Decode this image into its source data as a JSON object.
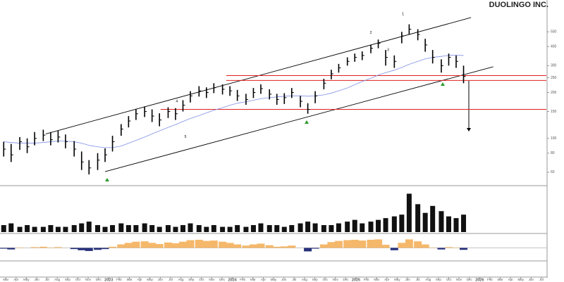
{
  "chart_data": [
    {
      "type": "ohlc",
      "title": "DUOLINGO INC.",
      "log_scale": true,
      "x": [
        2022.15,
        2022.21,
        2022.28,
        2022.34,
        2022.4,
        2022.47,
        2022.53,
        2022.59,
        2022.65,
        2022.72,
        2022.78,
        2022.84,
        2022.91,
        2022.97,
        2023.03,
        2023.1,
        2023.16,
        2023.22,
        2023.29,
        2023.35,
        2023.41,
        2023.48,
        2023.54,
        2023.6,
        2023.66,
        2023.73,
        2023.79,
        2023.85,
        2023.92,
        2023.98,
        2024.04,
        2024.11,
        2024.17,
        2024.23,
        2024.3,
        2024.36,
        2024.42,
        2024.48,
        2024.55,
        2024.61,
        2024.67,
        2024.74,
        2024.8,
        2024.86,
        2024.93,
        2024.99,
        2025.05,
        2025.12,
        2025.18,
        2025.24,
        2025.31,
        2025.37,
        2025.43,
        2025.5,
        2025.56,
        2025.62,
        2025.69,
        2025.75,
        2025.81,
        2025.87
      ],
      "high": [
        95,
        92,
        102,
        100,
        110,
        114,
        110,
        112,
        106,
        96,
        82,
        72,
        80,
        86,
        104,
        124,
        140,
        156,
        162,
        155,
        146,
        160,
        158,
        178,
        204,
        220,
        216,
        230,
        226,
        220,
        208,
        196,
        214,
        226,
        210,
        196,
        198,
        214,
        190,
        170,
        204,
        246,
        282,
        308,
        340,
        360,
        372,
        412,
        445,
        380,
        350,
        500,
        560,
        520,
        450,
        380,
        330,
        360,
        350,
        300
      ],
      "low": [
        76,
        70,
        84,
        80,
        90,
        96,
        90,
        94,
        86,
        76,
        62,
        58,
        62,
        70,
        82,
        104,
        118,
        132,
        138,
        128,
        120,
        136,
        132,
        150,
        172,
        188,
        184,
        198,
        194,
        190,
        176,
        166,
        184,
        196,
        180,
        166,
        168,
        184,
        160,
        145,
        170,
        210,
        244,
        270,
        300,
        318,
        326,
        362,
        390,
        300,
        290,
        420,
        480,
        440,
        370,
        310,
        270,
        300,
        290,
        230
      ],
      "close": [
        85,
        78,
        95,
        88,
        100,
        105,
        98,
        102,
        95,
        85,
        70,
        64,
        72,
        78,
        95,
        115,
        130,
        145,
        150,
        140,
        132,
        150,
        145,
        165,
        190,
        205,
        200,
        215,
        210,
        205,
        190,
        180,
        200,
        212,
        195,
        180,
        185,
        200,
        175,
        155,
        190,
        230,
        265,
        290,
        320,
        340,
        350,
        390,
        420,
        340,
        320,
        470,
        520,
        480,
        410,
        340,
        300,
        340,
        320,
        255
      ],
      "ma": [
        95,
        94,
        93,
        93,
        93,
        94,
        95,
        96,
        96,
        95,
        93,
        90,
        88,
        87,
        87,
        89,
        93,
        97,
        102,
        107,
        112,
        118,
        123,
        129,
        135,
        141,
        147,
        153,
        159,
        165,
        170,
        174,
        178,
        182,
        185,
        187,
        189,
        190,
        190,
        189,
        190,
        193,
        198,
        205,
        214,
        225,
        236,
        248,
        260,
        270,
        280,
        292,
        306,
        320,
        332,
        340,
        345,
        350,
        352,
        350
      ],
      "color": "#000000",
      "ma_color": "#7f8fe6",
      "level_color": "#e02020",
      "levels": [
        {
          "value": 258,
          "start": 2023.95
        },
        {
          "value": 240,
          "start": 2023.95
        },
        {
          "value": 155,
          "start": 2023.42
        }
      ],
      "trendlines": [
        {
          "x0": 2022.49,
          "y0": 107,
          "x1": 2025.93,
          "y1": 620
        },
        {
          "x0": 2022.97,
          "y0": 60.5,
          "x1": 2026.11,
          "y1": 295
        }
      ],
      "annotations": [
        {
          "text": "1",
          "x": 2025.38,
          "y": 654
        },
        {
          "text": "2",
          "x": 2025.12,
          "y": 493
        },
        {
          "text": "3",
          "x": 2025.26,
          "y": 380
        },
        {
          "text": "4",
          "x": 2023.55,
          "y": 175
        },
        {
          "text": "5",
          "x": 2023.62,
          "y": 102
        }
      ],
      "xlim": [
        2022.12,
        2026.54
      ],
      "ylim": [
        50,
        727
      ],
      "yticks": [
        60,
        80,
        100,
        150,
        200,
        250,
        300,
        400,
        500
      ],
      "xticks": [
        {
          "value": 2022.167,
          "label": "Mar"
        },
        {
          "value": 2022.25,
          "label": "Apr"
        },
        {
          "value": 2022.333,
          "label": "May"
        },
        {
          "value": 2022.417,
          "label": "Jun"
        },
        {
          "value": 2022.5,
          "label": "Jul"
        },
        {
          "value": 2022.583,
          "label": "Aug"
        },
        {
          "value": 2022.667,
          "label": "Sep"
        },
        {
          "value": 2022.75,
          "label": "Oct"
        },
        {
          "value": 2022.833,
          "label": "Nov"
        },
        {
          "value": 2022.917,
          "label": "Dec"
        },
        2023,
        {
          "value": 2023.083,
          "label": "Feb"
        },
        {
          "value": 2023.167,
          "label": "Mar"
        },
        {
          "value": 2023.25,
          "label": "Apr"
        },
        {
          "value": 2023.333,
          "label": "May"
        },
        {
          "value": 2023.417,
          "label": "Jun"
        },
        {
          "value": 2023.5,
          "label": "Jul"
        },
        {
          "value": 2023.583,
          "label": "Aug"
        },
        {
          "value": 2023.667,
          "label": "Sep"
        },
        {
          "value": 2023.75,
          "label": "Oct"
        },
        {
          "value": 2023.833,
          "label": "Nov"
        },
        {
          "value": 2023.917,
          "label": "Dec"
        },
        2024,
        {
          "value": 2024.083,
          "label": "Feb"
        },
        {
          "value": 2024.167,
          "label": "Mar"
        },
        {
          "value": 2024.25,
          "label": "Apr"
        },
        {
          "value": 2024.333,
          "label": "May"
        },
        {
          "value": 2024.417,
          "label": "Jun"
        },
        {
          "value": 2024.5,
          "label": "Jul"
        },
        {
          "value": 2024.583,
          "label": "Aug"
        },
        {
          "value": 2024.667,
          "label": "Sep"
        },
        {
          "value": 2024.75,
          "label": "Oct"
        },
        {
          "value": 2024.833,
          "label": "Nov"
        },
        {
          "value": 2024.917,
          "label": "Dec"
        },
        2025,
        {
          "value": 2025.083,
          "label": "Feb"
        },
        {
          "value": 2025.167,
          "label": "Mar"
        },
        {
          "value": 2025.25,
          "label": "Apr"
        },
        {
          "value": 2025.333,
          "label": "May"
        },
        {
          "value": 2025.417,
          "label": "Jun"
        },
        {
          "value": 2025.5,
          "label": "Jul"
        },
        {
          "value": 2025.583,
          "label": "Aug"
        },
        {
          "value": 2025.667,
          "label": "Sep"
        },
        {
          "value": 2025.75,
          "label": "Oct"
        },
        {
          "value": 2025.833,
          "label": "Nov"
        },
        {
          "value": 2025.917,
          "label": "Dec"
        },
        2026,
        {
          "value": 2026.083,
          "label": "Feb"
        },
        {
          "value": 2026.167,
          "label": "Mar"
        },
        {
          "value": 2026.25,
          "label": "Apr"
        },
        {
          "value": 2026.333,
          "label": "May"
        },
        {
          "value": 2026.417,
          "label": "Jun"
        },
        {
          "value": 2026.5,
          "label": "Jul"
        }
      ]
    },
    {
      "type": "bar",
      "color": "#111111",
      "ylim": [
        0,
        25
      ],
      "values": [
        4,
        5,
        3,
        4,
        3,
        3,
        4,
        3,
        3,
        4,
        5,
        6,
        4,
        3,
        4,
        5,
        4,
        4,
        5,
        4,
        3,
        4,
        3,
        4,
        5,
        4,
        3,
        4,
        3,
        3,
        4,
        3,
        4,
        5,
        4,
        4,
        3,
        4,
        5,
        6,
        5,
        4,
        4,
        5,
        6,
        7,
        5,
        6,
        7,
        8,
        9,
        10,
        22,
        16,
        11,
        15,
        12,
        9,
        8,
        10
      ]
    },
    {
      "type": "area",
      "pos_color": "#f5b86a",
      "neg_color": "#26307a",
      "ylim": [
        -3,
        3
      ],
      "values": [
        -0.2,
        -0.4,
        0.1,
        0.0,
        0.2,
        0.3,
        0.1,
        0.2,
        0.0,
        -0.3,
        -0.6,
        -0.8,
        -0.5,
        -0.3,
        0.3,
        0.9,
        1.3,
        1.6,
        1.7,
        1.3,
        1.0,
        1.4,
        1.2,
        1.6,
        2.0,
        2.1,
        1.8,
        1.9,
        1.6,
        1.3,
        0.9,
        0.6,
        0.9,
        1.1,
        0.7,
        0.3,
        0.4,
        0.6,
        0.0,
        -0.9,
        -0.2,
        0.9,
        1.5,
        1.8,
        2.0,
        2.1,
        1.9,
        2.1,
        2.2,
        0.8,
        -0.6,
        1.3,
        2.2,
        1.7,
        0.9,
        0.1,
        -0.4,
        0.2,
        0.1,
        -0.5
      ]
    }
  ]
}
